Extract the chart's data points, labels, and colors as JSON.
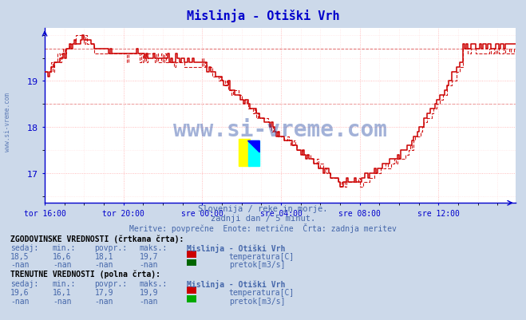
{
  "title": "Mislinja - Otiški Vrh",
  "subtitle1": "Slovenija / reke in morje.",
  "subtitle2": "zadnji dan / 5 minut.",
  "subtitle3": "Meritve: povprečne  Enote: metrične  Črta: zadnja meritev",
  "bg_color": "#ccd9ea",
  "plot_bg_color": "#ffffff",
  "grid_color_major": "#ffaaaa",
  "grid_color_minor": "#ffdddd",
  "line_color": "#cc0000",
  "axis_color": "#0000cc",
  "text_color_dark": "#000080",
  "text_color_mid": "#4466aa",
  "watermark": "www.si-vreme.com",
  "watermark_color": "#3355aa",
  "ylim_min": 16.35,
  "ylim_max": 20.15,
  "yticks": [
    17,
    18,
    19
  ],
  "legend_hist_label": "ZGODOVINSKE VREDNOSTI (črtkana črta):",
  "legend_curr_label": "TRENUTNE VREDNOSTI (polna črta):",
  "station_name": "Mislinja - Otiški Vrh",
  "hist_sedaj": "18,5",
  "hist_min": "16,6",
  "hist_povpr": "18,1",
  "hist_maks": "19,7",
  "curr_sedaj": "19,6",
  "curr_min": "16,1",
  "curr_povpr": "17,9",
  "curr_maks": "19,9",
  "nan_label": "-nan",
  "temp_label": "temperatura[C]",
  "flow_label": "pretok[m3/s]",
  "temp_color": "#cc0000",
  "flow_color_hist": "#006600",
  "flow_color_curr": "#00aa00",
  "n_points": 288,
  "xtick_pos": [
    0,
    48,
    96,
    144,
    192,
    240
  ],
  "xtick_labels": [
    "tor 16:00",
    "tor 20:00",
    "sre 00:00",
    "sre 04:00",
    "sre 08:00",
    "sre 12:00"
  ]
}
